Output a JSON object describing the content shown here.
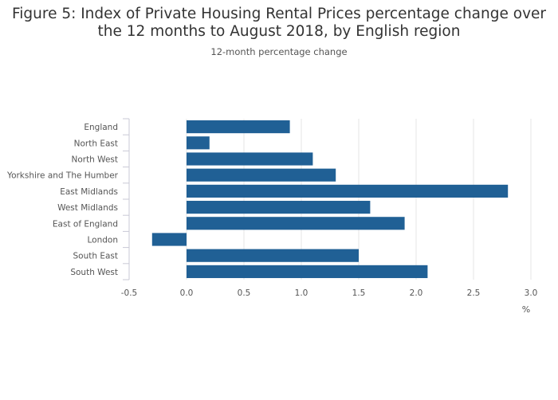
{
  "chart_data": {
    "type": "bar",
    "orientation": "horizontal",
    "title": "Figure 5: Index of Private Housing Rental Prices percentage change over the 12 months to August 2018, by English region",
    "subtitle": "12-month percentage change",
    "categories": [
      "England",
      "North East",
      "North West",
      "Yorkshire and The Humber",
      "East Midlands",
      "West Midlands",
      "East of England",
      "London",
      "South East",
      "South West"
    ],
    "values": [
      0.9,
      0.2,
      1.1,
      1.3,
      2.8,
      1.6,
      1.9,
      -0.3,
      1.5,
      2.1
    ],
    "xlabel": "%",
    "ylabel": "",
    "xlim": [
      -0.5,
      3.0
    ],
    "xticks": [
      "-0.5",
      "0.0",
      "0.5",
      "1.0",
      "1.5",
      "2.0",
      "2.5",
      "3.0"
    ],
    "grid": true,
    "bar_color": "#206095"
  }
}
